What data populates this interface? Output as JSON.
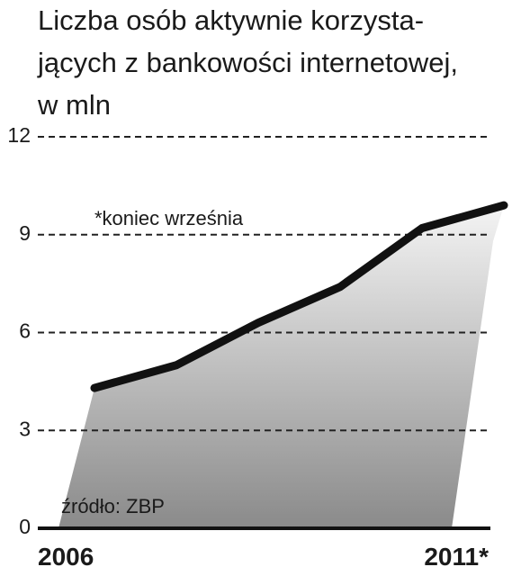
{
  "chart_data": {
    "type": "line",
    "title": [
      "Liczba osób aktywnie korzysta-",
      "jących z bankowości internetowej,",
      "w mln"
    ],
    "annotations": [
      "*koniec września",
      "źródło: ZBP"
    ],
    "categories": [
      "2006",
      null,
      null,
      null,
      null,
      "2011*"
    ],
    "values": [
      4.3,
      5.0,
      6.3,
      7.4,
      9.2,
      9.9
    ],
    "color": "#111111",
    "ylim": [
      0,
      12
    ],
    "yticks": [
      0,
      3,
      6,
      9,
      12
    ],
    "grid": true
  }
}
